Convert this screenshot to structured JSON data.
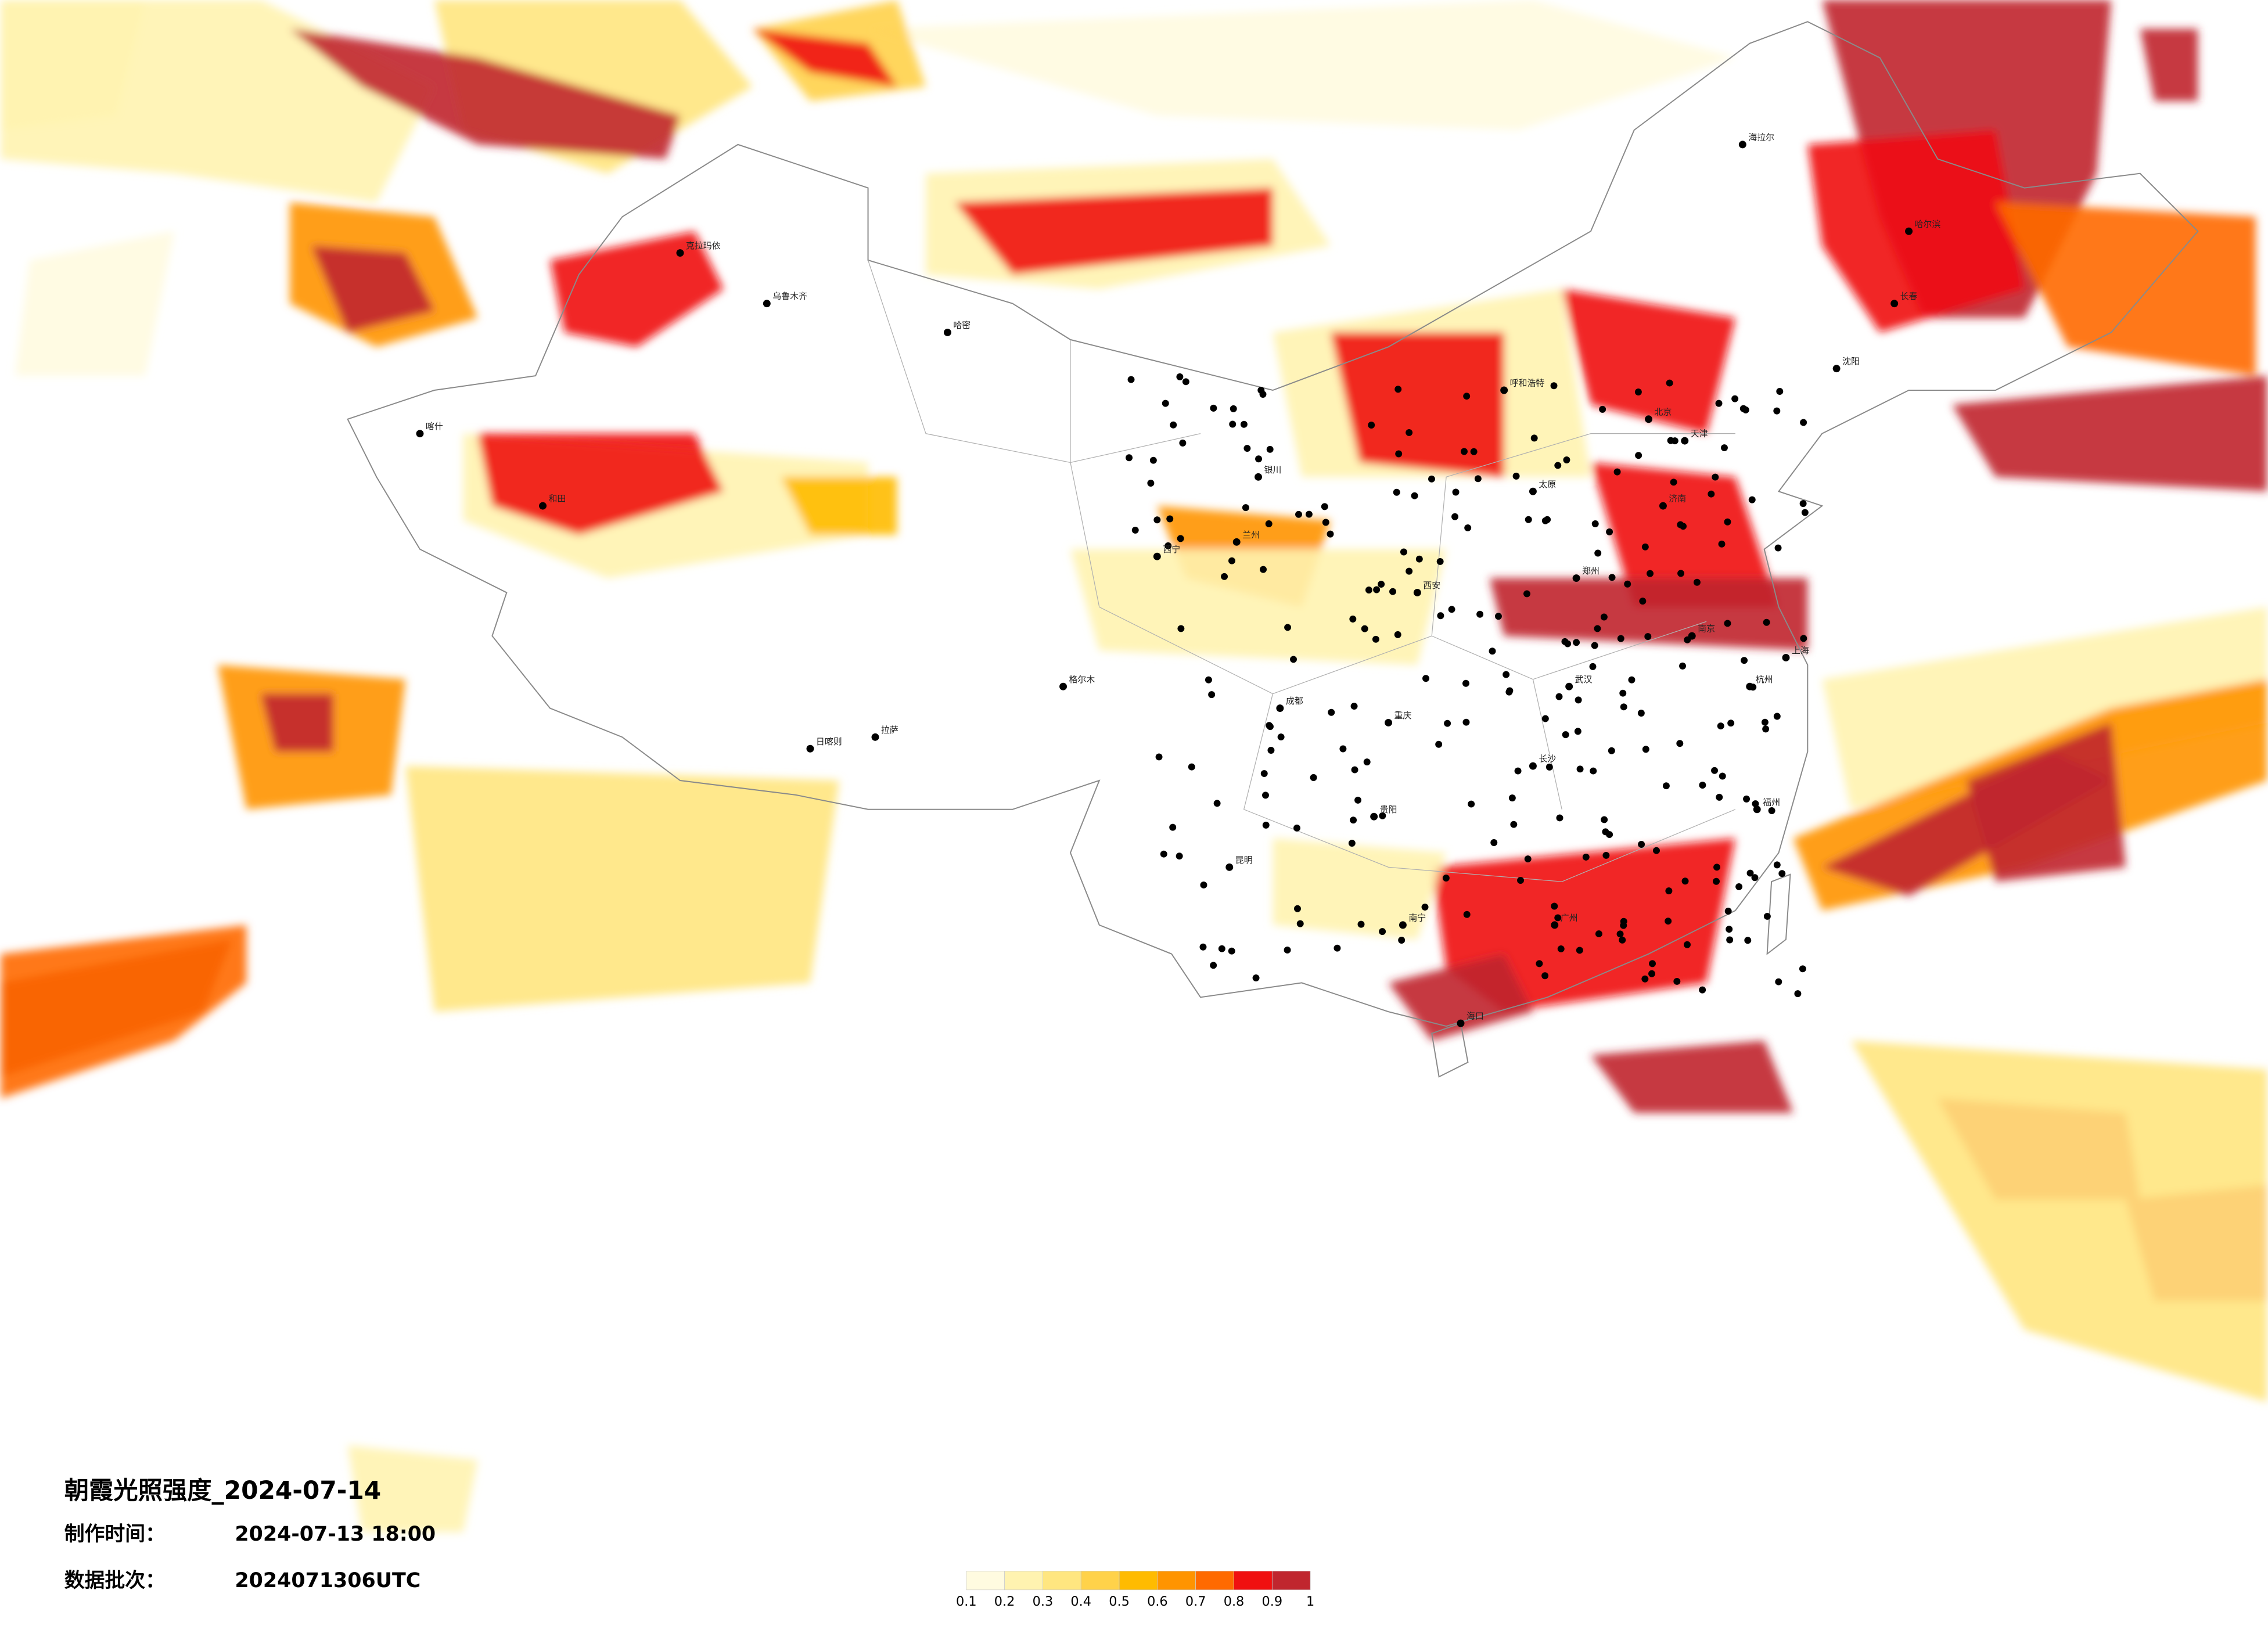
{
  "title": "朝霞光照强度_2024-07-14",
  "production": {
    "label": "制作时间：",
    "value": "2024-07-13 18:00"
  },
  "batch": {
    "label": "数据批次：",
    "value": "2024071306UTC"
  },
  "legend": {
    "colors": [
      "#fffbe0",
      "#fff3b0",
      "#ffe680",
      "#ffd24a",
      "#ffbb00",
      "#ff9400",
      "#ff6a00",
      "#f01010",
      "#c0262e"
    ],
    "ticks": [
      0.1,
      0.2,
      0.3,
      0.4,
      0.5,
      0.6,
      0.7,
      0.8,
      0.9,
      1
    ]
  },
  "cities": [
    "乌鲁木齐",
    "喀什",
    "和田",
    "克拉玛依",
    "哈密",
    "拉萨",
    "日喀则",
    "格尔木",
    "西宁",
    "兰州",
    "银川",
    "成都",
    "重庆",
    "贵阳",
    "昆明",
    "南宁",
    "广州",
    "福州",
    "杭州",
    "上海",
    "南京",
    "武汉",
    "长沙",
    "郑州",
    "济南",
    "北京",
    "天津",
    "太原",
    "呼和浩特",
    "沈阳",
    "长春",
    "哈尔滨",
    "海拉尔",
    "西安",
    "海口"
  ]
}
